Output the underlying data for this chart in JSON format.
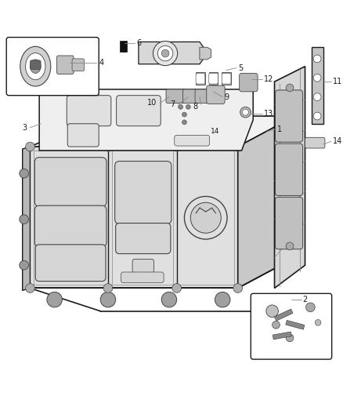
{
  "background_color": "#ffffff",
  "line_color": "#1a1a1a",
  "light_gray": "#cccccc",
  "medium_gray": "#888888",
  "dark_gray": "#444444",
  "figsize": [
    4.38,
    5.33
  ],
  "dpi": 100
}
